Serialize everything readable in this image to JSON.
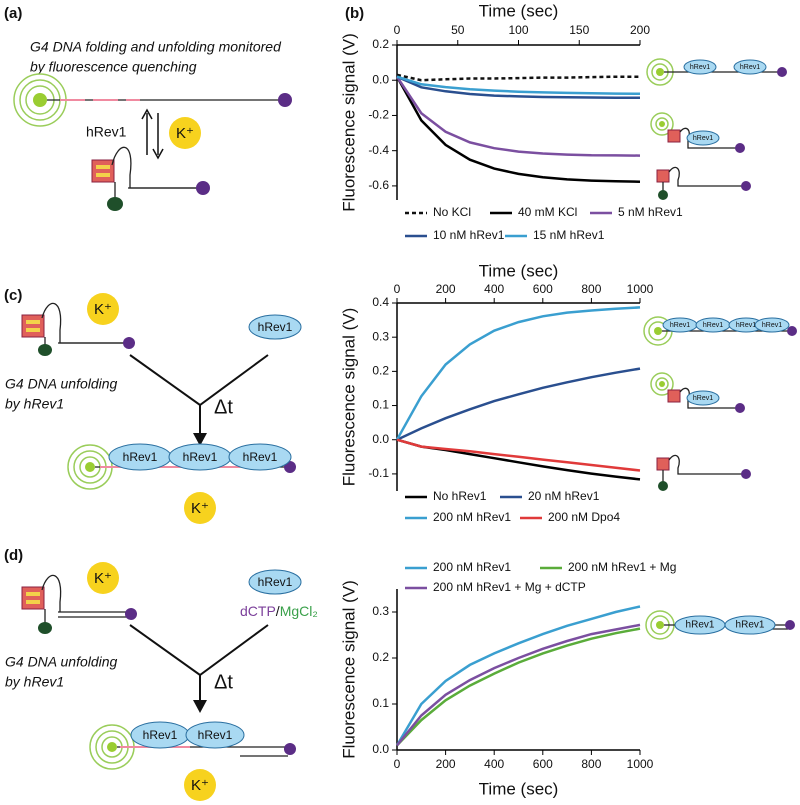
{
  "chart_data": [
    {
      "type": "line",
      "xlabel": "Time (sec)",
      "ylabel": "Fluorescence signal (V)",
      "x": [
        0,
        20,
        40,
        60,
        80,
        100,
        120,
        140,
        160,
        180,
        200
      ],
      "xlim": [
        0,
        200
      ],
      "xticks": [
        0,
        50,
        100,
        150,
        200
      ],
      "ylim": [
        -0.68,
        0.2
      ],
      "yticks": [
        0.2,
        {
          "value": 0,
          "label": "0.0"
        },
        -0.2,
        -0.4,
        -0.6
      ],
      "series": [
        {
          "name": "No KCl",
          "color": "#111111",
          "dash": true,
          "values": [
            0.03,
            0.0,
            0.005,
            0.01,
            0.01,
            0.012,
            0.015,
            0.015,
            0.018,
            0.02,
            0.02
          ]
        },
        {
          "name": "40 mM KCl",
          "color": "#000000",
          "values": [
            0.02,
            -0.228,
            -0.367,
            -0.451,
            -0.502,
            -0.532,
            -0.551,
            -0.563,
            -0.57,
            -0.574,
            -0.576
          ]
        },
        {
          "name": "5 nM hRev1",
          "color": "#7b4fa0",
          "values": [
            0.02,
            -0.187,
            -0.293,
            -0.353,
            -0.386,
            -0.405,
            -0.416,
            -0.422,
            -0.426,
            -0.427,
            -0.428
          ]
        },
        {
          "name": "10 nM hRev1",
          "color": "#2a4f8f",
          "values": [
            0.02,
            -0.04,
            -0.063,
            -0.078,
            -0.087,
            -0.092,
            -0.095,
            -0.097,
            -0.098,
            -0.099,
            -0.099
          ]
        },
        {
          "name": "15 nM hRev1",
          "color": "#3a9fd0",
          "values": [
            0.02,
            -0.023,
            -0.039,
            -0.051,
            -0.059,
            -0.065,
            -0.069,
            -0.072,
            -0.074,
            -0.076,
            -0.077
          ]
        }
      ]
    },
    {
      "type": "line",
      "xlabel": "Time (sec)",
      "ylabel": "Fluorescence signal (V)",
      "x": [
        0,
        100,
        200,
        300,
        400,
        500,
        600,
        700,
        800,
        900,
        1000
      ],
      "xlim": [
        0,
        1000
      ],
      "xticks": [
        0,
        200,
        400,
        600,
        800,
        1000
      ],
      "ylim": [
        -0.15,
        0.4
      ],
      "yticks": [
        0.4,
        0.3,
        0.2,
        0.1,
        {
          "value": 0,
          "label": "0.0"
        },
        -0.1
      ],
      "series": [
        {
          "name": "No hRev1",
          "color": "#000000",
          "values": [
            0,
            -0.02,
            -0.03,
            -0.042,
            -0.054,
            -0.066,
            -0.078,
            -0.089,
            -0.099,
            -0.108,
            -0.116
          ]
        },
        {
          "name": "20 nM hRev1",
          "color": "#2a4f8f",
          "values": [
            0,
            0.033,
            0.063,
            0.089,
            0.113,
            0.133,
            0.152,
            0.168,
            0.183,
            0.196,
            0.208
          ]
        },
        {
          "name": "200 nM hRev1",
          "color": "#3a9fd0",
          "values": [
            0,
            0.127,
            0.22,
            0.279,
            0.319,
            0.344,
            0.361,
            0.372,
            0.378,
            0.383,
            0.387
          ]
        },
        {
          "name": "200 nM Dpo4",
          "color": "#e03a3a",
          "values": [
            0,
            -0.02,
            -0.027,
            -0.034,
            -0.042,
            -0.05,
            -0.058,
            -0.066,
            -0.074,
            -0.082,
            -0.09
          ]
        }
      ]
    },
    {
      "type": "line",
      "xlabel": "Time (sec)",
      "ylabel": "Fluorescence signal (V)",
      "x": [
        0,
        100,
        200,
        300,
        400,
        500,
        600,
        700,
        800,
        900,
        1000
      ],
      "xlim": [
        0,
        1000
      ],
      "xticks": [
        0,
        200,
        400,
        600,
        800,
        1000
      ],
      "ylim": [
        0,
        0.35
      ],
      "yticks": [
        {
          "value": 0,
          "label": "0.0"
        },
        0.1,
        0.2,
        0.3
      ],
      "series": [
        {
          "name": "200 nM hRev1",
          "color": "#3a9fd0",
          "values": [
            0.01,
            0.1,
            0.15,
            0.185,
            0.21,
            0.232,
            0.252,
            0.27,
            0.285,
            0.3,
            0.312
          ]
        },
        {
          "name": "200 nM hRev1 + Mg",
          "color": "#5aac3a",
          "values": [
            0.01,
            0.065,
            0.108,
            0.14,
            0.166,
            0.19,
            0.21,
            0.227,
            0.242,
            0.254,
            0.264
          ]
        },
        {
          "name": "200 nM hRev1 + Mg + dCTP",
          "color": "#7b4fa0",
          "values": [
            0.01,
            0.075,
            0.12,
            0.152,
            0.178,
            0.2,
            0.22,
            0.237,
            0.252,
            0.262,
            0.272
          ]
        }
      ]
    }
  ],
  "panel_labels": [
    "(a)",
    "(b)",
    "(c)",
    "(d)"
  ],
  "diagram_a": {
    "caption": [
      "G4 DNA folding and unfolding monitored",
      "by fluorescence quenching"
    ],
    "protein": "hRev1",
    "ion": "K⁺"
  },
  "states_b": [
    [
      "hRev1",
      "hRev1"
    ],
    [
      "hRev1"
    ]
  ],
  "diagram_c": {
    "ion": "K⁺",
    "protein": "hRev1",
    "caption": [
      "G4 DNA unfolding",
      "by hRev1"
    ],
    "delay": "Δt",
    "bound": [
      "hRev1",
      "hRev1",
      "hRev1"
    ],
    "ion_after": "K⁺"
  },
  "states_c": [
    [
      "hRev1",
      "hRev1",
      "hRev1",
      "hRev1"
    ],
    [
      "hRev1"
    ]
  ],
  "diagram_d": {
    "ion": "K⁺",
    "protein": "hRev1",
    "cofactors": [
      "dCTP",
      "/",
      "MgCl₂"
    ],
    "caption": [
      "G4 DNA unfolding",
      "by hRev1"
    ],
    "delay": "Δt",
    "bound": [
      "hRev1",
      "hRev1"
    ],
    "ion_after": "K⁺"
  },
  "states_d": [
    [
      "hRev1",
      "hRev1"
    ]
  ]
}
